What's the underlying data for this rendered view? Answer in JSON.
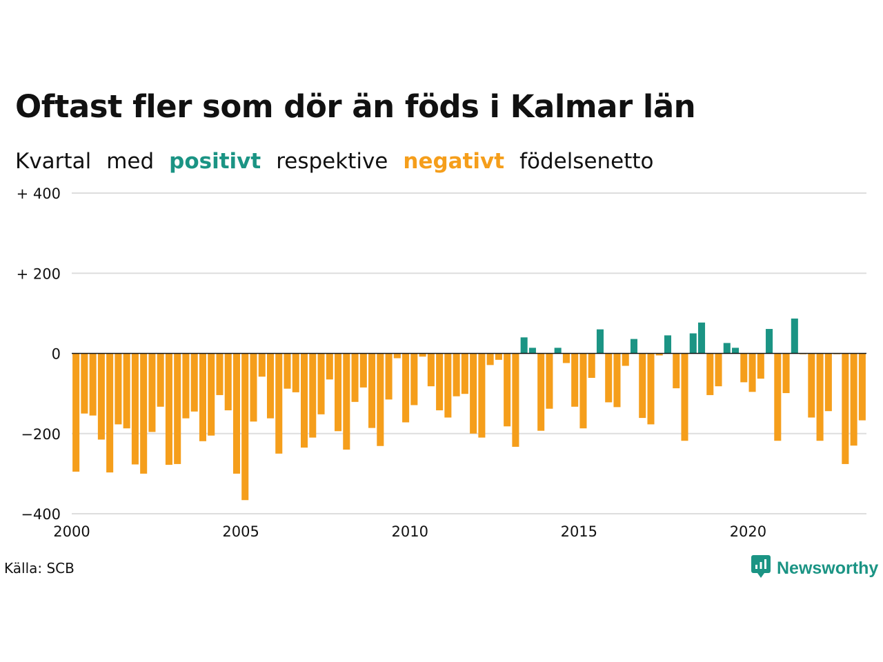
{
  "title": "Oftast fler som dör än föds i Kalmar län",
  "subtitle": {
    "w1": "Kvartal",
    "w2": "med",
    "w3": "positivt",
    "w4": "respektive",
    "w5": "negativt",
    "w6": "födelsenetto"
  },
  "source": "Källa: SCB",
  "brand": {
    "name": "Newsworthy",
    "icon": "newsworthy-logo-icon",
    "color": "#1b9484"
  },
  "colors": {
    "positive": "#1b9484",
    "negative": "#f59e1b",
    "grid": "#dddddd",
    "axis": "#111111"
  },
  "chart_data": {
    "type": "bar",
    "title": "Oftast fler som dör än föds i Kalmar län",
    "xlabel": "",
    "ylabel": "",
    "ylim": [
      -400,
      400
    ],
    "xlim": [
      2000,
      2023.5
    ],
    "grid": true,
    "yticks": [
      400,
      200,
      0,
      -200,
      -400
    ],
    "ytick_labels": [
      "+ 400",
      "+ 200",
      "0",
      "−200",
      "−400"
    ],
    "xticks": [
      2000,
      2005,
      2010,
      2015,
      2020
    ],
    "xtick_labels": [
      "2000",
      "2005",
      "2010",
      "2015",
      "2020"
    ],
    "start_year": 2000,
    "series": [
      {
        "values": [
          -295,
          -150,
          -155,
          -215,
          -297,
          -177,
          -187,
          -277,
          -300,
          -196,
          -133,
          -278,
          -276,
          -162,
          -145,
          -219,
          -205,
          -104,
          -142,
          -300,
          -366,
          -170,
          -58,
          -162,
          -250,
          -88,
          -97,
          -235,
          -210,
          -152,
          -65,
          -194,
          -240,
          -121,
          -85,
          -186,
          -231,
          -115,
          -12,
          -172,
          -129,
          -8,
          -82,
          -142,
          -160,
          -107,
          -101,
          -200,
          -210,
          -29,
          -16,
          -182,
          -233,
          40,
          14,
          -193,
          -138,
          14,
          -24,
          -133,
          -187,
          -61,
          60,
          -122,
          -134,
          -31,
          36,
          -161,
          -177,
          -5,
          45,
          -87,
          -218,
          50,
          77,
          -104,
          -82,
          26,
          14,
          -72,
          -96,
          -63,
          61,
          -218,
          -99,
          87,
          -2,
          -160,
          -218,
          -144,
          -2,
          -276,
          -230,
          -167
        ]
      }
    ]
  }
}
